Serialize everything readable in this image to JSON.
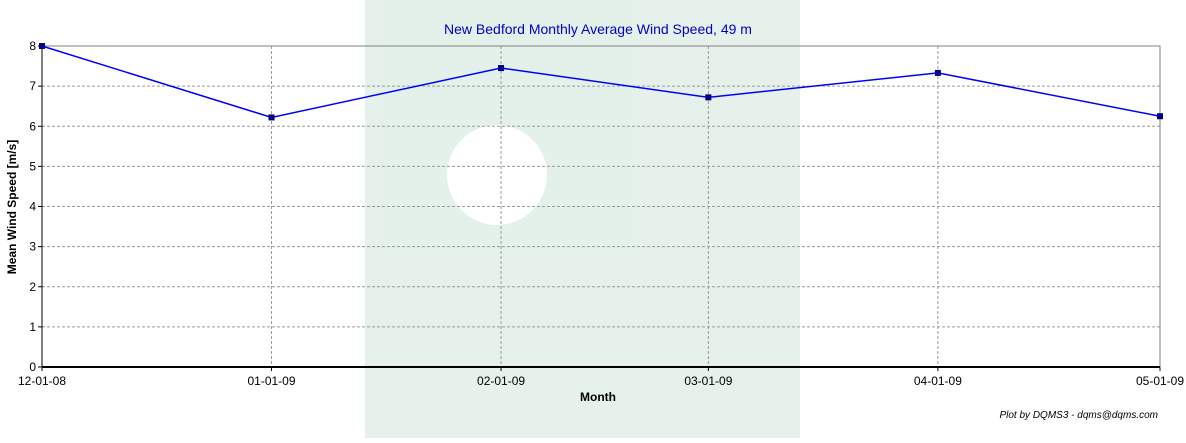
{
  "chart_data": {
    "type": "line",
    "title": "New Bedford Monthly Average Wind Speed, 49 m",
    "x_label": "Month",
    "y_label": "Mean Wind Speed [m/s]",
    "footer": "Plot by DQMS3 - dqms@dqms.com",
    "x": [
      "12-01-08",
      "01-01-09",
      "02-01-09",
      "03-01-09",
      "04-01-09",
      "05-01-09"
    ],
    "xlim": [
      "12-01-08",
      "05-01-09"
    ],
    "series": [
      {
        "color": "#0000ff",
        "values": [
          8.0,
          6.22,
          7.45,
          6.72,
          7.33,
          6.25
        ]
      }
    ],
    "ylim": [
      0,
      8
    ],
    "yticks": [
      0,
      1,
      2,
      3,
      4,
      5,
      6,
      7,
      8
    ],
    "grid": true
  }
}
